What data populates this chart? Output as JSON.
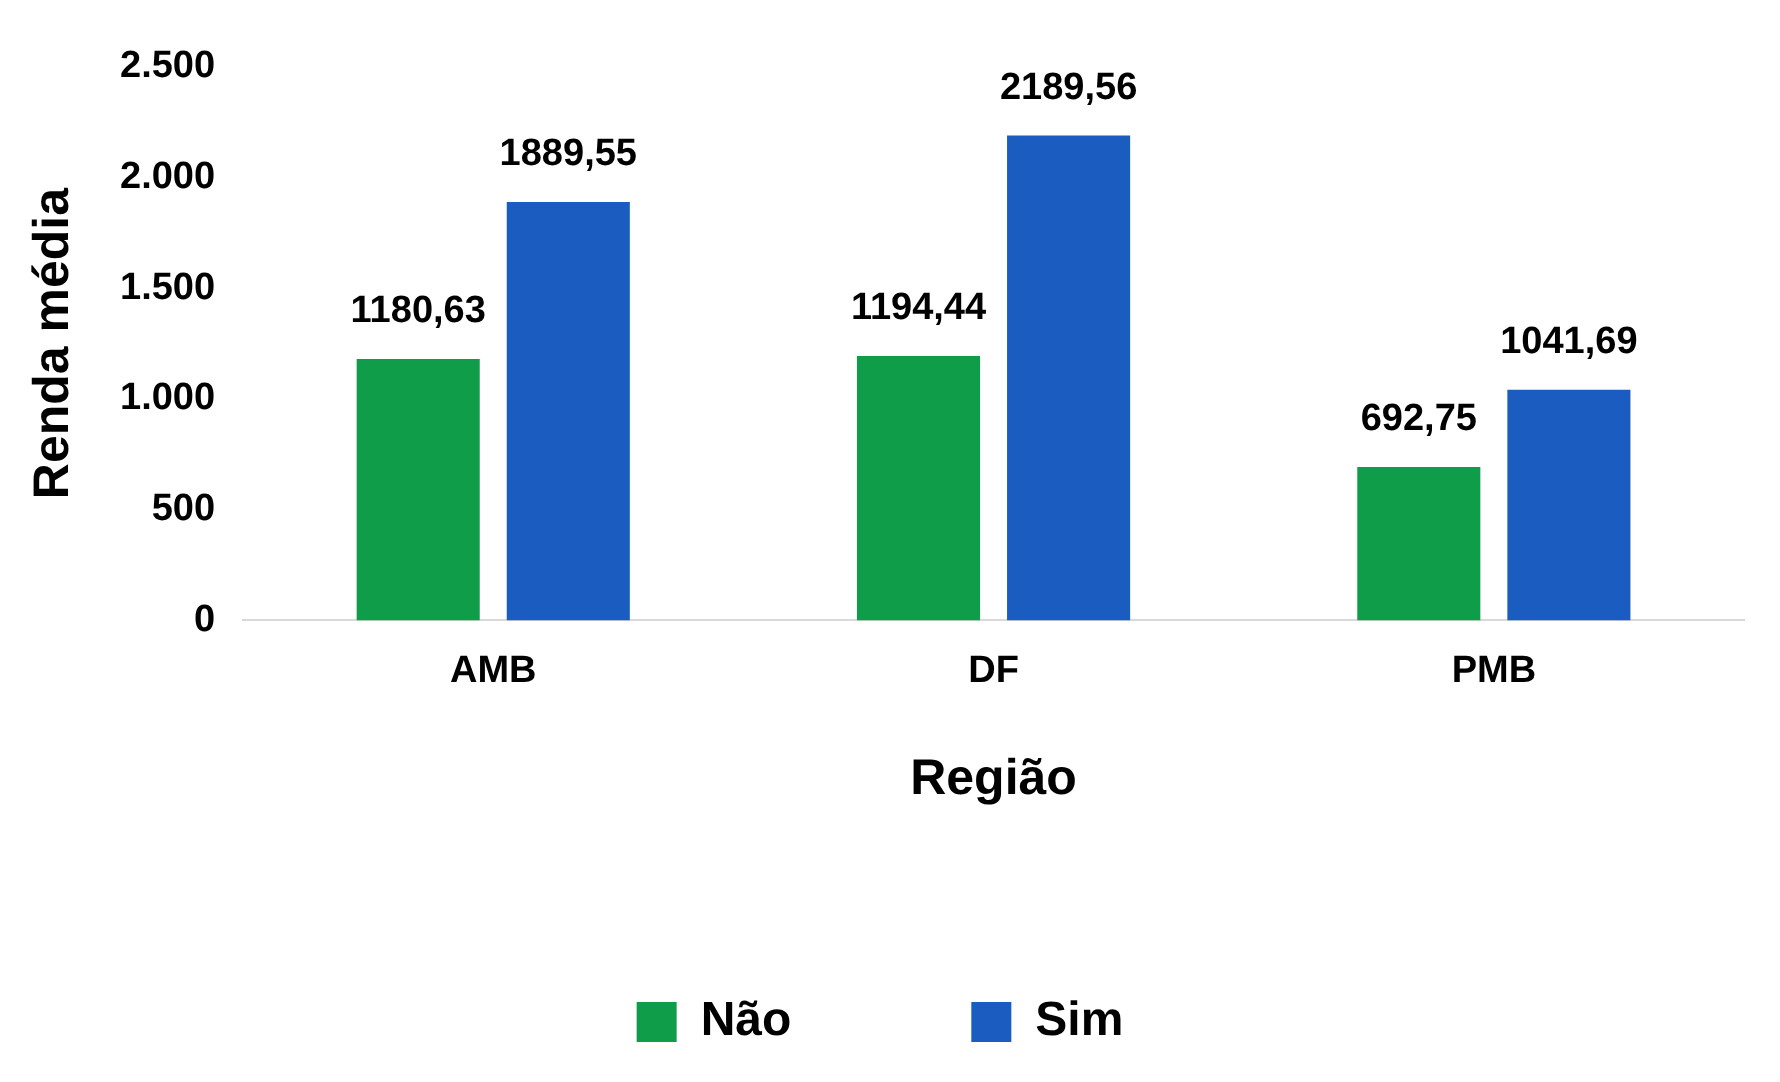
{
  "chart_data": {
    "type": "bar",
    "xlabel": "Região",
    "ylabel": "Renda média",
    "categories": [
      "AMB",
      "DF",
      "PMB"
    ],
    "series": [
      {
        "name": "Não",
        "color": "#0f9d4a",
        "values": [
          1180.63,
          1194.44,
          692.75
        ],
        "value_labels": [
          "1180,63",
          "1194,44",
          "692,75"
        ]
      },
      {
        "name": "Sim",
        "color": "#1a5cbf",
        "values": [
          1889.55,
          2189.56,
          1041.69
        ],
        "value_labels": [
          "1889,55",
          "2189,56",
          "1041,69"
        ]
      }
    ],
    "ylim": [
      0,
      2500
    ],
    "yticks": [
      0,
      500,
      {
        "value": 1000,
        "label": "1.000"
      },
      {
        "value": 1500,
        "label": "1.500"
      },
      {
        "value": 2000,
        "label": "2.000"
      },
      {
        "value": 2500,
        "label": "2.500"
      }
    ],
    "grid": false,
    "legend": "bottom"
  }
}
